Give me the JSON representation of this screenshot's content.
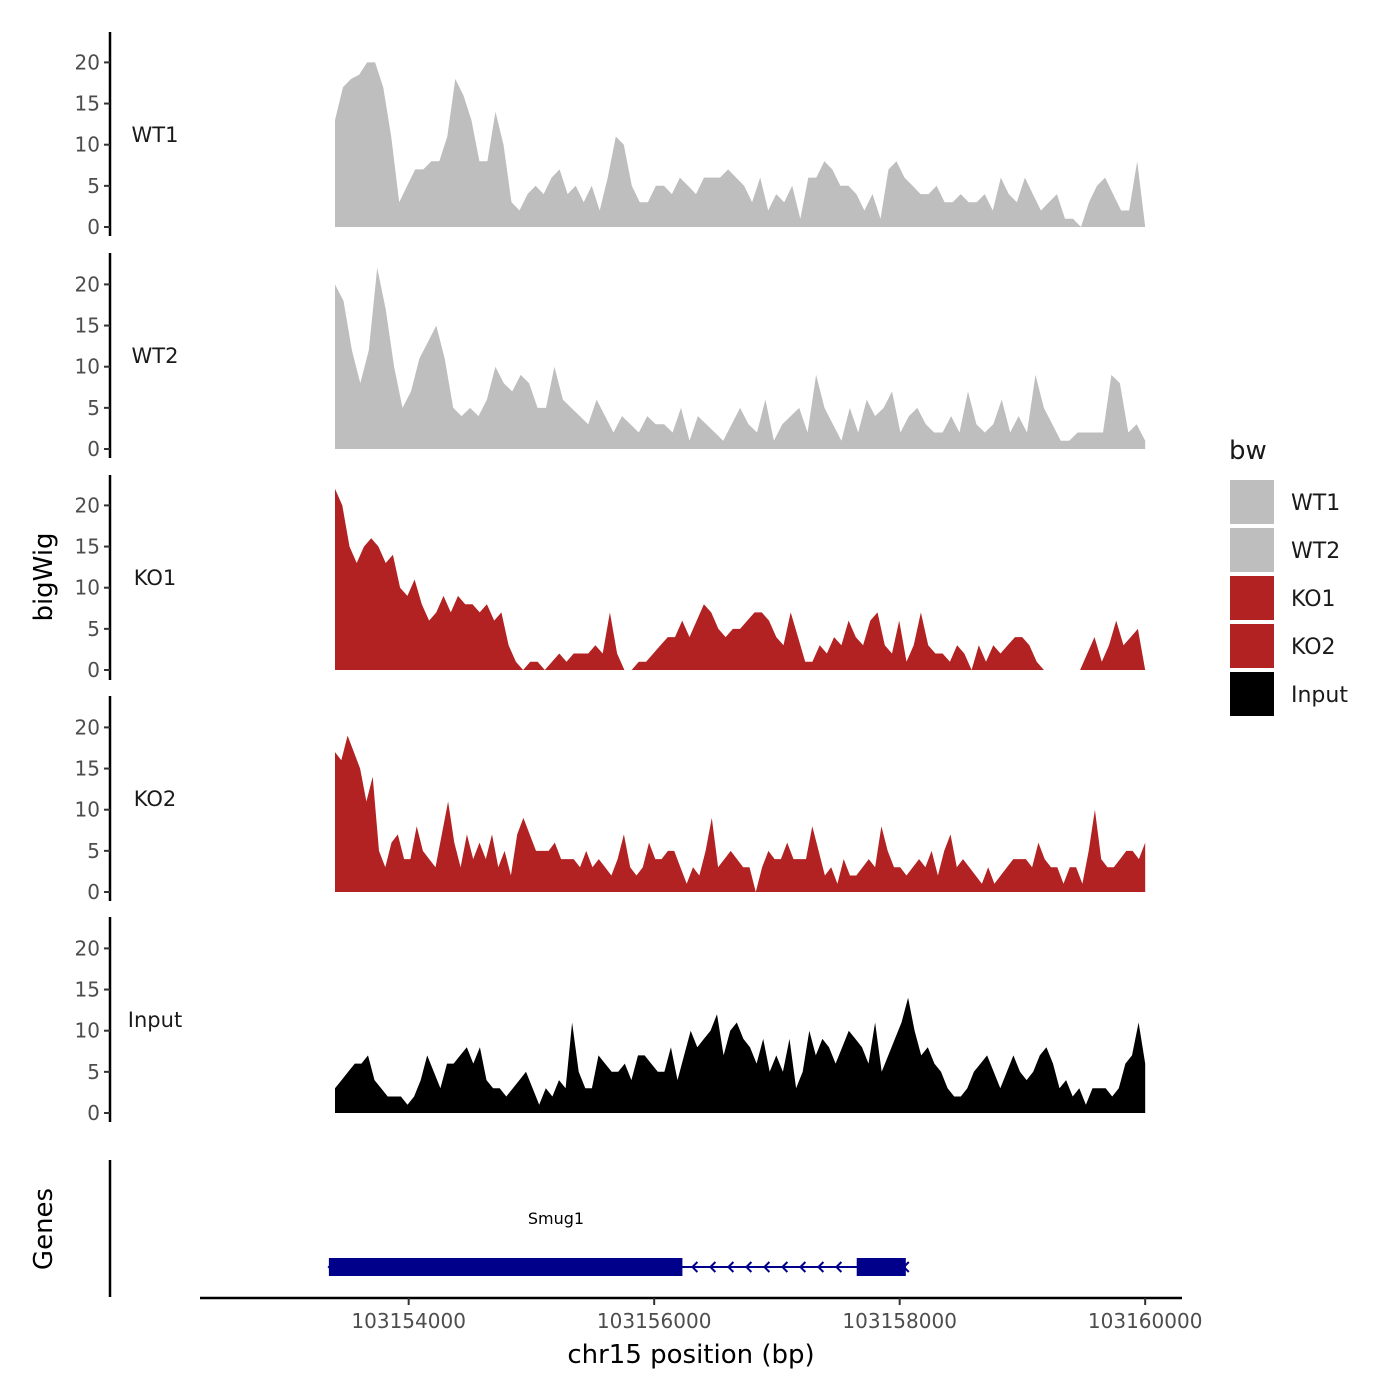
{
  "chart_data": {
    "type": "area",
    "xlabel": "chr15 position (bp)",
    "ylabel": "bigWig",
    "gene_panel_label": "Genes",
    "xlim": [
      103152300,
      103160300
    ],
    "ylim": [
      0,
      24
    ],
    "x_ticks": [
      103154000,
      103156000,
      103158000,
      103160000
    ],
    "x_tick_labels": [
      "103154000",
      "103156000",
      "103158000",
      "103160000"
    ],
    "y_ticks": [
      0,
      5,
      10,
      15,
      20
    ],
    "y_tick_labels": [
      "0",
      "5",
      "10",
      "15",
      "20"
    ],
    "legend": {
      "title": "bw",
      "position": "right",
      "entries": [
        {
          "label": "WT1",
          "color": "#bebebe"
        },
        {
          "label": "WT2",
          "color": "#bebebe"
        },
        {
          "label": "KO1",
          "color": "#b22222"
        },
        {
          "label": "KO2",
          "color": "#b22222"
        },
        {
          "label": "Input",
          "color": "#000000"
        }
      ]
    },
    "series": [
      {
        "name": "WT1",
        "color": "#bebebe",
        "x_start": 103153400,
        "x_end": 103160000,
        "values": [
          13,
          17,
          18,
          18.5,
          20,
          20,
          17,
          11,
          3,
          5,
          7,
          7,
          8,
          8,
          11,
          18,
          16,
          13,
          8,
          8,
          14,
          10,
          3,
          2,
          4,
          5,
          4,
          6,
          7,
          4,
          5,
          3,
          5,
          2,
          6,
          11,
          10,
          5,
          3,
          3,
          5,
          5,
          4,
          6,
          5,
          4,
          6,
          6,
          6,
          7,
          6,
          5,
          3,
          6,
          2,
          4,
          3,
          5,
          1,
          6,
          6,
          8,
          7,
          5,
          5,
          4,
          2,
          4,
          1,
          7,
          8,
          6,
          5,
          4,
          4,
          5,
          3,
          3,
          4,
          3,
          3,
          4,
          2,
          6,
          4,
          3,
          6,
          4,
          2,
          3,
          4,
          1,
          1,
          0,
          3,
          5,
          6,
          4,
          2,
          2,
          8,
          0
        ]
      },
      {
        "name": "WT2",
        "color": "#bebebe",
        "x_start": 103153400,
        "x_end": 103160000,
        "values": [
          20,
          18,
          12,
          8,
          12,
          22,
          17,
          10,
          5,
          7,
          11,
          13,
          15,
          11,
          5,
          4,
          5,
          4,
          6,
          10,
          8,
          7,
          9,
          8,
          5,
          5,
          10,
          6,
          5,
          4,
          3,
          6,
          4,
          2,
          4,
          3,
          2,
          4,
          3,
          3,
          2,
          5,
          1,
          4,
          3,
          2,
          1,
          3,
          5,
          3,
          2,
          6,
          1,
          3,
          4,
          5,
          2,
          9,
          5,
          3,
          1,
          5,
          2,
          6,
          4,
          5,
          7,
          2,
          4,
          5,
          3,
          2,
          2,
          4,
          2,
          7,
          3,
          2,
          3,
          6,
          2,
          4,
          2,
          9,
          5,
          3,
          1,
          1,
          2,
          2,
          2,
          2,
          9,
          8,
          2,
          3,
          1
        ]
      },
      {
        "name": "KO1",
        "color": "#b22222",
        "x_start": 103153400,
        "x_end": 103160000,
        "values": [
          22,
          20,
          15,
          13,
          15,
          16,
          15,
          13,
          14,
          10,
          9,
          11,
          8,
          6,
          7,
          9,
          7,
          9,
          8,
          8,
          7,
          8,
          6,
          7,
          3,
          1,
          0,
          1,
          1,
          0,
          1,
          2,
          1,
          2,
          2,
          2,
          3,
          2,
          7,
          2,
          0,
          0,
          1,
          1,
          2,
          3,
          4,
          4,
          6,
          4,
          6,
          8,
          7,
          5,
          4,
          5,
          5,
          6,
          7,
          7,
          6,
          4,
          3,
          7,
          4,
          1,
          1,
          3,
          2,
          4,
          3,
          6,
          4,
          3,
          6,
          7,
          3,
          2,
          6,
          1,
          3,
          7,
          3,
          2,
          2,
          1,
          3,
          2,
          0,
          3,
          1,
          3,
          2,
          3,
          4,
          4,
          3,
          1,
          0,
          0,
          0,
          0,
          0,
          0,
          2,
          4,
          1,
          3,
          6,
          3,
          4,
          5,
          0
        ]
      },
      {
        "name": "KO2",
        "color": "#b22222",
        "x_start": 103153400,
        "x_end": 103160000,
        "values": [
          17,
          16,
          19,
          17,
          15,
          11,
          14,
          5,
          3,
          6,
          7,
          4,
          4,
          8,
          5,
          4,
          3,
          7,
          11,
          6,
          3,
          7,
          4,
          6,
          4,
          7,
          3,
          5,
          2,
          7,
          9,
          7,
          5,
          5,
          5,
          6,
          4,
          4,
          4,
          3,
          5,
          3,
          4,
          3,
          2,
          4,
          7,
          3,
          2,
          3,
          6,
          4,
          4,
          5,
          5,
          3,
          1,
          3,
          2,
          5,
          9,
          3,
          4,
          5,
          4,
          3,
          3,
          0,
          3,
          5,
          4,
          4,
          6,
          4,
          4,
          4,
          8,
          5,
          2,
          3,
          1,
          4,
          2,
          2,
          3,
          4,
          3,
          8,
          5,
          3,
          3,
          2,
          3,
          4,
          3,
          5,
          2,
          5,
          7,
          3,
          4,
          3,
          2,
          1,
          3,
          1,
          2,
          3,
          4,
          4,
          4,
          3,
          6,
          4,
          3,
          3,
          1,
          3,
          3,
          1,
          5,
          10,
          4,
          3,
          3,
          4,
          5,
          5,
          4,
          6
        ]
      },
      {
        "name": "Input",
        "color": "#000000",
        "x_start": 103153400,
        "x_end": 103160000,
        "values": [
          3,
          4,
          5,
          6,
          6,
          7,
          4,
          3,
          2,
          2,
          2,
          1,
          2,
          4,
          7,
          5,
          3,
          6,
          6,
          7,
          8,
          6,
          8,
          4,
          3,
          3,
          2,
          3,
          4,
          5,
          3,
          1,
          3,
          2,
          4,
          3,
          11,
          5,
          3,
          3,
          7,
          6,
          5,
          5,
          6,
          4,
          7,
          7,
          6,
          5,
          5,
          8,
          4,
          7,
          10,
          8,
          9,
          10,
          12,
          7,
          10,
          11,
          9,
          8,
          6,
          9,
          5,
          7,
          5,
          9,
          3,
          5,
          10,
          7,
          9,
          8,
          6,
          8,
          10,
          9,
          8,
          6,
          11,
          5,
          7,
          9,
          11,
          14,
          10,
          7,
          8,
          6,
          5,
          3,
          2,
          2,
          3,
          5,
          6,
          7,
          5,
          3,
          5,
          7,
          5,
          4,
          5,
          7,
          8,
          6,
          3,
          4,
          2,
          3,
          1,
          3,
          3,
          3,
          2,
          3,
          6,
          7,
          11,
          6
        ]
      }
    ],
    "genes": [
      {
        "name": "Smug1",
        "strand": "-",
        "color": "#00008b",
        "start": 103153350,
        "end": 103158050,
        "exons": [
          [
            103153350,
            103156230
          ],
          [
            103157650,
            103158050
          ]
        ]
      }
    ]
  }
}
